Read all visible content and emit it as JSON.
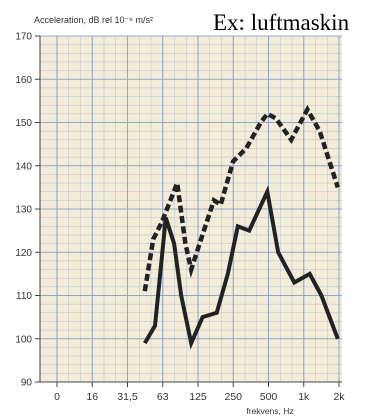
{
  "overlay_title": "Ex: luftmaskin",
  "colors": {
    "background": "#f2ecd9",
    "grid": "#8aa0c8",
    "axis": "#444444",
    "text": "#333333",
    "series_dashed": "#222222",
    "series_solid": "#222222"
  },
  "chart_data": {
    "type": "line",
    "title": "",
    "ylabel": "Acceleration, dB rel 10⁻⁶ m/s²",
    "xlabel": "frekvens, Hz",
    "x_tick_labels": [
      "0",
      "16",
      "31,5",
      "63",
      "125",
      "250",
      "500",
      "1k",
      "2k"
    ],
    "y_ticks": [
      90,
      100,
      110,
      120,
      130,
      140,
      150,
      160,
      170
    ],
    "ylim": [
      90,
      170
    ],
    "grid": true,
    "legend": "none",
    "series": [
      {
        "style": "dashed",
        "points": [
          {
            "x": 45,
            "y": 111
          },
          {
            "x": 53,
            "y": 123
          },
          {
            "x": 63,
            "y": 127
          },
          {
            "x": 72,
            "y": 131
          },
          {
            "x": 85,
            "y": 136
          },
          {
            "x": 100,
            "y": 122
          },
          {
            "x": 112,
            "y": 116
          },
          {
            "x": 132,
            "y": 122
          },
          {
            "x": 175,
            "y": 132
          },
          {
            "x": 200,
            "y": 131
          },
          {
            "x": 255,
            "y": 141
          },
          {
            "x": 330,
            "y": 144
          },
          {
            "x": 440,
            "y": 150
          },
          {
            "x": 500,
            "y": 152
          },
          {
            "x": 590,
            "y": 151
          },
          {
            "x": 800,
            "y": 146
          },
          {
            "x": 1100,
            "y": 153
          },
          {
            "x": 1400,
            "y": 148
          },
          {
            "x": 2000,
            "y": 135
          }
        ]
      },
      {
        "style": "solid",
        "points": [
          {
            "x": 45,
            "y": 99
          },
          {
            "x": 55,
            "y": 103
          },
          {
            "x": 68,
            "y": 128
          },
          {
            "x": 80,
            "y": 122
          },
          {
            "x": 92,
            "y": 110
          },
          {
            "x": 112,
            "y": 99
          },
          {
            "x": 140,
            "y": 105
          },
          {
            "x": 185,
            "y": 106
          },
          {
            "x": 230,
            "y": 115
          },
          {
            "x": 280,
            "y": 126
          },
          {
            "x": 350,
            "y": 125
          },
          {
            "x": 500,
            "y": 134
          },
          {
            "x": 620,
            "y": 120
          },
          {
            "x": 850,
            "y": 113
          },
          {
            "x": 1150,
            "y": 115
          },
          {
            "x": 1450,
            "y": 110
          },
          {
            "x": 2000,
            "y": 100
          }
        ]
      }
    ]
  }
}
